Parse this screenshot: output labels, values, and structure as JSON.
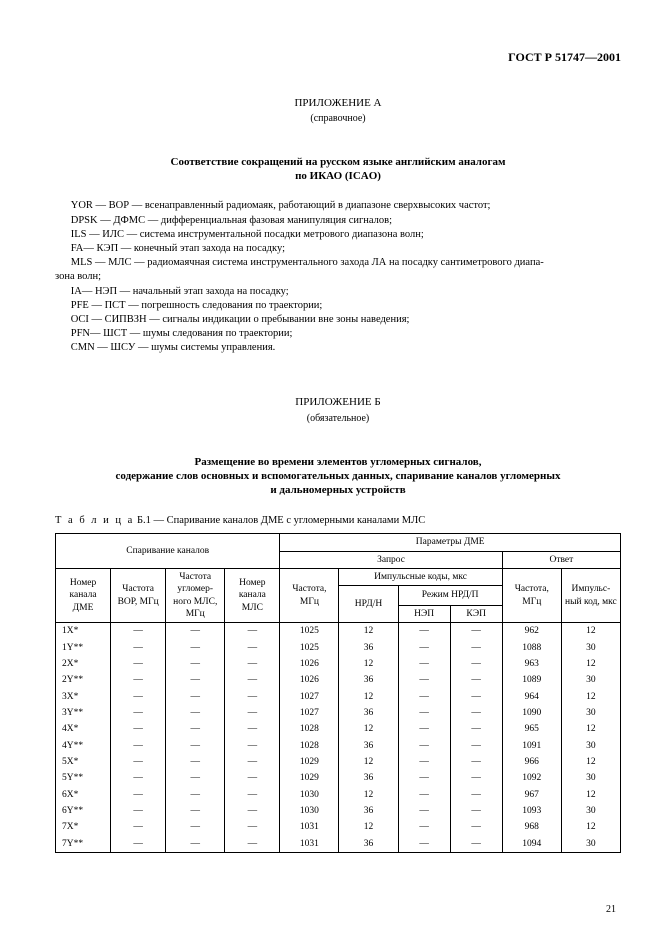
{
  "doc_id": "ГОСТ Р 51747—2001",
  "appendix_a": {
    "title": "ПРИЛОЖЕНИЕ А",
    "note": "(справочное)",
    "heading_l1": "Соответствие сокращений на русском языке английским аналогам",
    "heading_l2": "по ИКАО (ICAO)",
    "lines": [
      "      YOR — ВОР — всенаправленный радиомаяк, работающий в диапазоне сверхвысоких частот;",
      "      DPSK — ДФМС — дифференциальная фазовая манипуляция сигналов;",
      "      ILS — ИЛС — система инструментальной посадки метрового диапазона волн;",
      "      FA— КЭП — конечный этап захода на посадку;",
      "      MLS — МЛС — радиомаячная система инструментального захода ЛА на посадку сантиметрового диапа-",
      "зона волн;",
      "      IA— НЭП — начальный этап захода на посадку;",
      "      PFE — ПСТ — погрешность следования по траектории;",
      "      OCI — СИПВЗН — сигналы индикации о пребывании вне зоны наведения;",
      "      PFN— ШСТ — шумы следования по траектории;",
      "      CMN — ШСУ — шумы системы управления."
    ]
  },
  "appendix_b": {
    "title": "ПРИЛОЖЕНИЕ Б",
    "note": "(обязательное)",
    "heading_l1": "Размещение во времени элементов угломерных сигналов,",
    "heading_l2": "содержание слов основных и вспомогательных данных, спаривание каналов угломерных",
    "heading_l3": "и дальномерных устройств",
    "table_caption_prefix": "Т а б л и ц а",
    "table_caption": "  Б.1 — Спаривание каналов ДМЕ с угломерными каналами МЛС",
    "headers": {
      "pairing": "Спаривание каналов",
      "dme_params": "Параметры ДМЕ",
      "request": "Запрос",
      "response": "Ответ",
      "ch_dme": "Номер канала ДМЕ",
      "freq_vor": "Частота ВОР, МГц",
      "freq_ang_mls": "Частота угломер- ного МЛС, МГц",
      "ch_mls": "Номер канала МЛС",
      "freq": "Частота, МГц",
      "imp_codes": "Импульсные коды, мкс",
      "nrd_n": "НРД/Н",
      "nrd_p": "Режим НРД/П",
      "nep": "НЭП",
      "kep": "КЭП",
      "resp_freq": "Частота, МГц",
      "resp_code": "Импульс- ный код, мкс"
    },
    "rows": [
      [
        "1X*",
        "—",
        "—",
        "—",
        "1025",
        "12",
        "—",
        "—",
        "962",
        "12"
      ],
      [
        "1Y**",
        "—",
        "—",
        "—",
        "1025",
        "36",
        "—",
        "—",
        "1088",
        "30"
      ],
      [
        "2X*",
        "—",
        "—",
        "—",
        "1026",
        "12",
        "—",
        "—",
        "963",
        "12"
      ],
      [
        "2Y**",
        "—",
        "—",
        "—",
        "1026",
        "36",
        "—",
        "—",
        "1089",
        "30"
      ],
      [
        "3X*",
        "—",
        "—",
        "—",
        "1027",
        "12",
        "—",
        "—",
        "964",
        "12"
      ],
      [
        "3Y**",
        "—",
        "—",
        "—",
        "1027",
        "36",
        "—",
        "—",
        "1090",
        "30"
      ],
      [
        "4X*",
        "—",
        "—",
        "—",
        "1028",
        "12",
        "—",
        "—",
        "965",
        "12"
      ],
      [
        "4Y**",
        "—",
        "—",
        "—",
        "1028",
        "36",
        "—",
        "—",
        "1091",
        "30"
      ],
      [
        "5X*",
        "—",
        "—",
        "—",
        "1029",
        "12",
        "—",
        "—",
        "966",
        "12"
      ],
      [
        "5Y**",
        "—",
        "—",
        "—",
        "1029",
        "36",
        "—",
        "—",
        "1092",
        "30"
      ],
      [
        "6X*",
        "—",
        "—",
        "—",
        "1030",
        "12",
        "—",
        "—",
        "967",
        "12"
      ],
      [
        "6Y**",
        "—",
        "—",
        "—",
        "1030",
        "36",
        "—",
        "—",
        "1093",
        "30"
      ],
      [
        "7X*",
        "—",
        "—",
        "—",
        "1031",
        "12",
        "—",
        "—",
        "968",
        "12"
      ],
      [
        "7Y**",
        "—",
        "—",
        "—",
        "1031",
        "36",
        "—",
        "—",
        "1094",
        "30"
      ]
    ]
  },
  "page_number": "21"
}
